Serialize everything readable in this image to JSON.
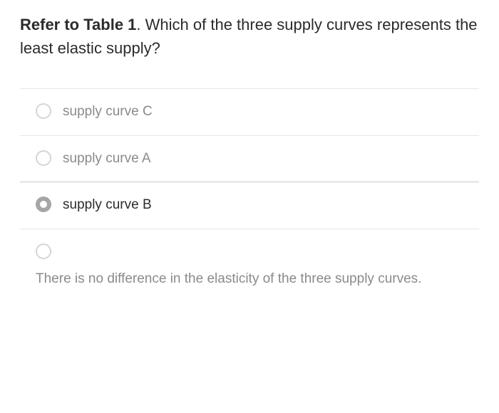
{
  "question": {
    "bold_prefix": "Refer to Table 1",
    "rest": ". Which of the three supply curves represents the least elastic supply?"
  },
  "options": [
    {
      "label": "supply curve C",
      "selected": false
    },
    {
      "label": "supply curve A",
      "selected": false
    },
    {
      "label": "supply curve B",
      "selected": true
    },
    {
      "label": "There is no difference in the elasticity of the three supply curves.",
      "selected": false
    }
  ],
  "colors": {
    "text_primary": "#2b2b2b",
    "text_muted": "#8a8a8a",
    "divider": "#e6e6e6",
    "divider_strong": "#c8c8c8",
    "radio_border": "#d5d5d5",
    "radio_selected": "#a6a6a6",
    "background": "#ffffff"
  },
  "typography": {
    "question_fontsize": 22,
    "option_fontsize": 19,
    "font_family": "sans-serif"
  }
}
